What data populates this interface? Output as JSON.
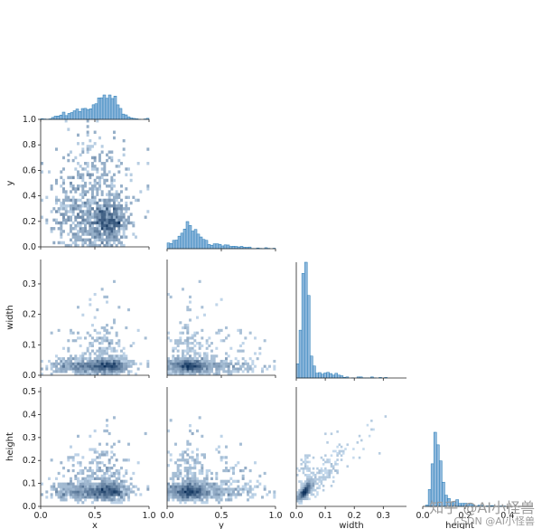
{
  "watermark": {
    "line1": "知乎 @AI小怪兽",
    "line2": "CSDN @AI小怪兽"
  },
  "colors": {
    "bar": "#1f77b4",
    "density_low": "#cfe3f5",
    "density_high": "#0b2f5a",
    "axis": "#222222"
  },
  "chart_data": {
    "type": "heatmap",
    "variables": [
      {
        "name": "x",
        "range": [
          0,
          1.0
        ],
        "ticks": [
          0.0,
          0.5,
          1.0
        ],
        "tick_labels": [
          "0.0",
          "0.5",
          "1.0"
        ]
      },
      {
        "name": "y",
        "range": [
          0,
          1.0
        ],
        "ticks": [
          0.0,
          0.2,
          0.4,
          0.6,
          0.8,
          1.0
        ],
        "tick_labels": [
          "0.0",
          "0.2",
          "0.4",
          "0.6",
          "0.8",
          "1.0"
        ],
        "x_ticks": [
          0.0,
          0.5,
          1.0
        ],
        "x_tick_labels": [
          "0.0",
          "0.5",
          "1.0"
        ]
      },
      {
        "name": "width",
        "range": [
          0,
          0.38
        ],
        "ticks": [
          0.0,
          0.1,
          0.2,
          0.3
        ],
        "tick_labels": [
          "0.0",
          "0.1",
          "0.2",
          "0.3"
        ]
      },
      {
        "name": "height",
        "range": [
          0,
          0.52
        ],
        "ticks": [
          0.0,
          0.1,
          0.2,
          0.3,
          0.4,
          0.5
        ],
        "tick_labels": [
          "0.0",
          "0.1",
          "0.2",
          "0.3",
          "0.4",
          "0.5"
        ],
        "x_ticks": [
          0.0,
          0.2,
          0.4
        ],
        "x_tick_labels": [
          "0.0",
          "0.2",
          "0.4"
        ]
      }
    ],
    "marginal_histograms": {
      "x": {
        "peak_at": 0.62,
        "shape": "left-skewed, bimodal with shoulder near 0.35"
      },
      "y": {
        "peak_at": 0.18,
        "shape": "right-skewed"
      },
      "width": {
        "peak_at": 0.03,
        "shape": "sharp peak, long right tail"
      },
      "height": {
        "peak_at": 0.06,
        "shape": "narrow peak"
      }
    },
    "layout": "corner pairplot (lower triangle + diagonal histograms)",
    "legend": "none",
    "grid": false
  }
}
